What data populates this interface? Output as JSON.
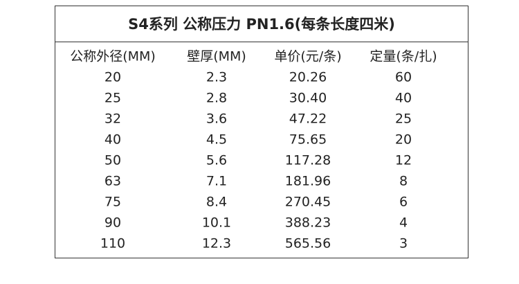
{
  "table": {
    "title": "S4系列 公称压力 PN1.6(每条长度四米)",
    "header": [
      "公称外径(MM)",
      "壁厚(MM)",
      "单价(元/条)",
      "定量(条/扎)"
    ],
    "rows": [
      [
        "20",
        "2.3",
        "20.26",
        "60"
      ],
      [
        "25",
        "2.8",
        "30.40",
        "40"
      ],
      [
        "32",
        "3.6",
        "47.22",
        "25"
      ],
      [
        "40",
        "4.5",
        "75.65",
        "20"
      ],
      [
        "50",
        "5.6",
        "117.28",
        "12"
      ],
      [
        "63",
        "7.1",
        "181.96",
        "8"
      ],
      [
        "75",
        "8.4",
        "270.45",
        "6"
      ],
      [
        "90",
        "10.1",
        "388.23",
        "4"
      ],
      [
        "110",
        "12.3",
        "565.56",
        "3"
      ]
    ]
  }
}
